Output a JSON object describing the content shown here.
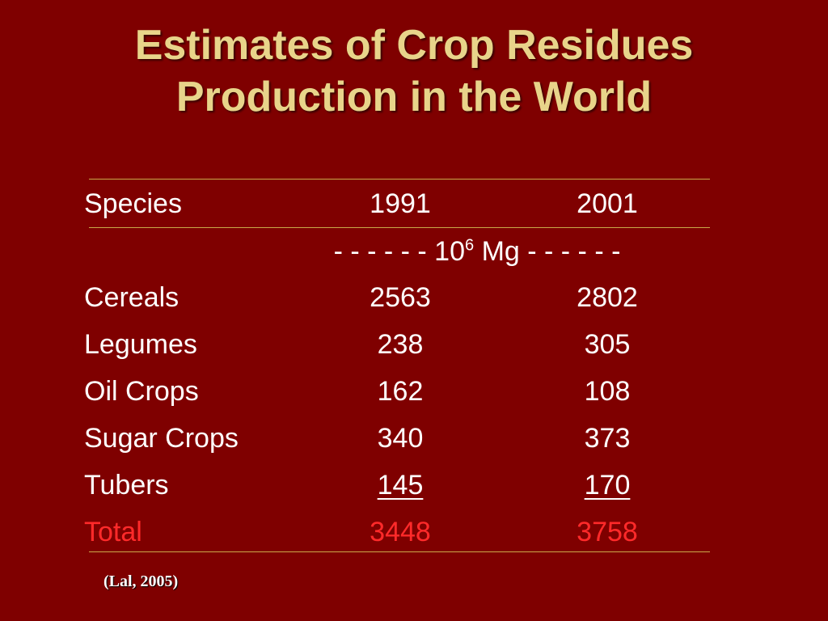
{
  "title": {
    "line1": "Estimates of Crop Residues",
    "line2": "Production in the World"
  },
  "table": {
    "header": {
      "species": "Species",
      "year1": "1991",
      "year2": "2001"
    },
    "units": {
      "prefix": "- - - - - - 10",
      "exponent": "6",
      "suffix": " Mg - - - - - -"
    },
    "rows": [
      {
        "species": "Cereals",
        "y1991": "2563",
        "y2001": "2802"
      },
      {
        "species": "Legumes",
        "y1991": "238",
        "y2001": "305"
      },
      {
        "species": "Oil Crops",
        "y1991": "162",
        "y2001": "108"
      },
      {
        "species": "Sugar Crops",
        "y1991": "340",
        "y2001": "373"
      },
      {
        "species": "Tubers",
        "y1991": "145",
        "y2001": "170"
      }
    ],
    "total": {
      "label": "Total",
      "y1991": "3448",
      "y2001": "3758"
    }
  },
  "citation": "(Lal, 2005)",
  "colors": {
    "background": "#7f0000",
    "title": "#e8d48a",
    "text": "#ffffff",
    "total": "#ff2a2a",
    "rule": "#c9a94a"
  }
}
